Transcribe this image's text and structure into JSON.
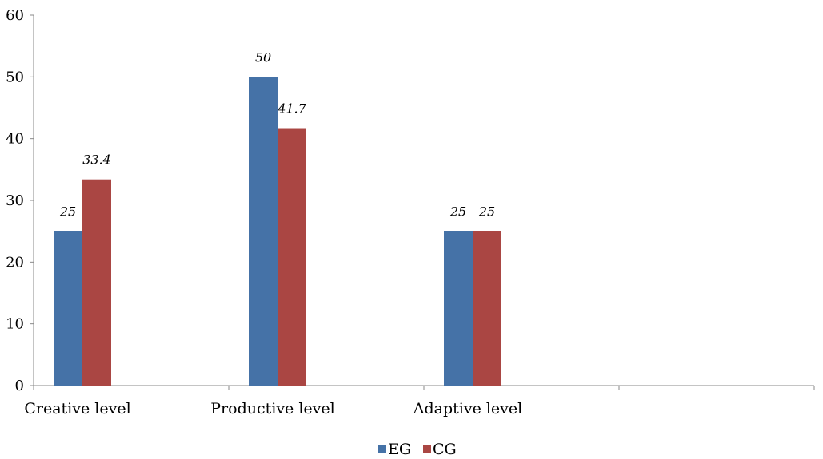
{
  "chart_data": {
    "type": "bar",
    "categories": [
      "Creative level",
      "Productive level",
      "Adaptive level",
      ""
    ],
    "series": [
      {
        "name": "EG",
        "values": [
          25,
          50,
          25,
          null
        ],
        "labels": [
          "25",
          "50",
          "25",
          ""
        ],
        "color": "#4572A7"
      },
      {
        "name": "CG",
        "values": [
          33.4,
          41.7,
          25,
          null
        ],
        "labels": [
          "33.4",
          "41.7",
          "25",
          ""
        ],
        "color": "#AA4643"
      }
    ],
    "yticks": [
      "0",
      "10",
      "20",
      "30",
      "40",
      "50",
      "60"
    ],
    "ylim": [
      0,
      60
    ],
    "title": "",
    "xlabel": "",
    "ylabel": "",
    "grid": false,
    "legend": "bottom-center"
  }
}
